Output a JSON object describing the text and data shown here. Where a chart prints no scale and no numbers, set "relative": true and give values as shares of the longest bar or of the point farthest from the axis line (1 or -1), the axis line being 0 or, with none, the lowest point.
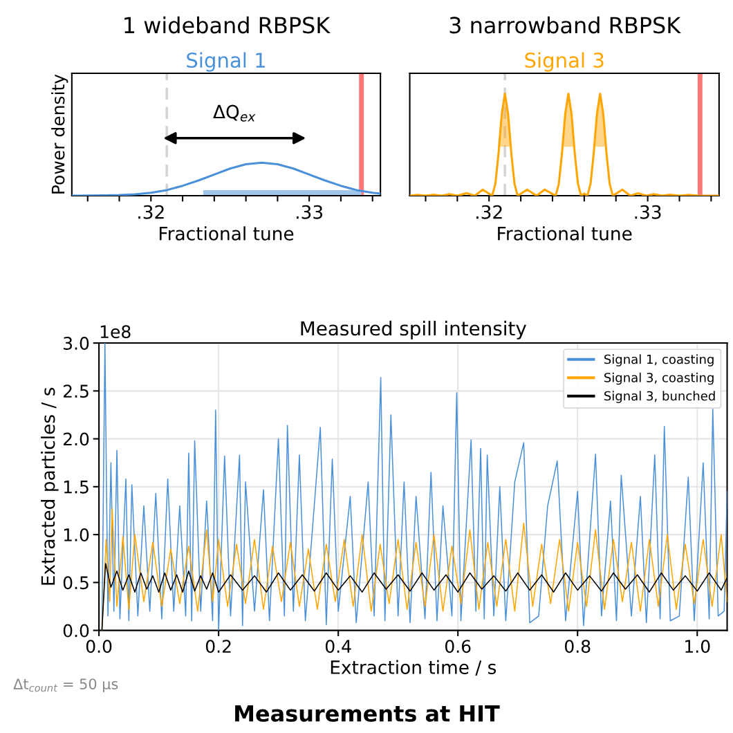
{
  "chart_data": [
    {
      "type": "line",
      "title": "1 wideband RBPSK",
      "subtitle": "Signal 1",
      "xlabel": "Fractional tune",
      "ylabel": "Power density",
      "relative": true,
      "tick_labels": "x",
      "xlim": [
        0.315,
        0.3345
      ],
      "xticks": [
        {
          "value": 0.316,
          "label": null
        },
        {
          "value": 0.318,
          "label": null
        },
        {
          "value": 0.32,
          "label": ".32"
        },
        {
          "value": 0.322,
          "label": null
        },
        {
          "value": 0.324,
          "label": null
        },
        {
          "value": 0.326,
          "label": null
        },
        {
          "value": 0.328,
          "label": null
        },
        {
          "value": 0.33,
          "label": ".33"
        },
        {
          "value": 0.332,
          "label": null
        },
        {
          "value": 0.334,
          "label": null
        }
      ],
      "series": [
        {
          "color": "#4a90d9",
          "x": [
            0.315,
            0.316,
            0.317,
            0.318,
            0.319,
            0.32,
            0.321,
            0.322,
            0.323,
            0.324,
            0.325,
            0.326,
            0.327,
            0.328,
            0.329,
            0.33,
            0.331,
            0.332,
            0.333,
            0.334,
            0.3345
          ],
          "values": [
            0.001,
            0.003,
            0.008,
            0.019,
            0.044,
            0.091,
            0.17,
            0.3,
            0.46,
            0.64,
            0.82,
            0.95,
            1,
            0.95,
            0.82,
            0.64,
            0.46,
            0.3,
            0.17,
            0.091,
            0.066
          ]
        }
      ],
      "ref_lines": [
        {
          "axis": "x",
          "value": 0.321,
          "color": "#d3d3d3",
          "line_style": "dashed"
        },
        {
          "axis": "x",
          "value": 0.3333,
          "color": "#ff7777",
          "line_style": "solid"
        }
      ],
      "annotations": [
        "ΔQ$_{ex}$"
      ],
      "bands": [
        {
          "axis": "x",
          "from": 0.3233,
          "to": 0.3333,
          "color": "#9fc5ea"
        }
      ]
    },
    {
      "type": "line",
      "title": "3 narrowband RBPSK",
      "subtitle": "Signal 3",
      "xlabel": "Fractional tune",
      "relative": true,
      "tick_labels": "x",
      "xlim": [
        0.315,
        0.3345
      ],
      "xticks": [
        {
          "value": 0.316,
          "label": null
        },
        {
          "value": 0.318,
          "label": null
        },
        {
          "value": 0.32,
          "label": ".32"
        },
        {
          "value": 0.322,
          "label": null
        },
        {
          "value": 0.324,
          "label": null
        },
        {
          "value": 0.326,
          "label": null
        },
        {
          "value": 0.328,
          "label": null
        },
        {
          "value": 0.33,
          "label": ".33"
        },
        {
          "value": 0.332,
          "label": null
        },
        {
          "value": 0.334,
          "label": null
        }
      ],
      "series": [
        {
          "color": "#ffa500",
          "x": [
            0.315,
            0.3155,
            0.316,
            0.3165,
            0.317,
            0.3175,
            0.318,
            0.3186,
            0.3191,
            0.3196,
            0.3202,
            0.3204,
            0.3206,
            0.32063,
            0.3208,
            0.321,
            0.3212,
            0.32137,
            0.3214,
            0.3216,
            0.3218,
            0.3224,
            0.323,
            0.3235,
            0.3242,
            0.3244,
            0.3246,
            0.32463,
            0.3248,
            0.325,
            0.3252,
            0.32537,
            0.3254,
            0.3256,
            0.3258,
            0.326,
            0.3262,
            0.3264,
            0.3266,
            0.32663,
            0.3268,
            0.327,
            0.3272,
            0.32737,
            0.3274,
            0.3276,
            0.3278,
            0.3284,
            0.3289,
            0.3294,
            0.3299,
            0.3304,
            0.3309,
            0.3314,
            0.332,
            0.3326,
            0.3332,
            0.3345
          ],
          "values": [
            0,
            0.008,
            0,
            0.01,
            0,
            0.015,
            0,
            0.025,
            0,
            0.06,
            0,
            0.12,
            0.42,
            0.48,
            0.8,
            1,
            0.8,
            0.48,
            0.42,
            0.12,
            0,
            0.06,
            0,
            0.06,
            0,
            0.12,
            0.42,
            0.48,
            0.8,
            1,
            0.8,
            0.48,
            0.42,
            0.12,
            0,
            0.02,
            0,
            0.12,
            0.42,
            0.48,
            0.8,
            1,
            0.8,
            0.48,
            0.42,
            0.12,
            0,
            0.06,
            0,
            0.025,
            0,
            0.015,
            0,
            0.01,
            0,
            0.008,
            0,
            0
          ],
          "lower": [
            null,
            null,
            null,
            null,
            null,
            null,
            null,
            null,
            null,
            null,
            null,
            null,
            null,
            0.48,
            0.48,
            0.48,
            0.48,
            0.48,
            null,
            null,
            null,
            null,
            null,
            null,
            null,
            null,
            null,
            0.48,
            0.48,
            0.48,
            0.48,
            0.48,
            null,
            null,
            null,
            null,
            null,
            null,
            null,
            0.48,
            0.48,
            0.48,
            0.48,
            0.48,
            null,
            null,
            null,
            null,
            null,
            null,
            null,
            null,
            null,
            null,
            null,
            null,
            null,
            null
          ],
          "upper": [
            null,
            null,
            null,
            null,
            null,
            null,
            null,
            null,
            null,
            null,
            null,
            null,
            null,
            0.48,
            0.8,
            1,
            0.8,
            0.48,
            null,
            null,
            null,
            null,
            null,
            null,
            null,
            null,
            null,
            0.48,
            0.8,
            1,
            0.8,
            0.48,
            null,
            null,
            null,
            null,
            null,
            null,
            null,
            0.48,
            0.8,
            1,
            0.8,
            0.48,
            null,
            null,
            null,
            null,
            null,
            null,
            null,
            null,
            null,
            null,
            null,
            null,
            null,
            null
          ]
        }
      ],
      "ref_lines": [
        {
          "axis": "x",
          "value": 0.321,
          "color": "#d3d3d3",
          "line_style": "dashed"
        },
        {
          "axis": "x",
          "value": 0.3333,
          "color": "#ff7777",
          "line_style": "solid"
        }
      ]
    },
    {
      "type": "line",
      "title": "Measured spill intensity",
      "xlabel": "Extraction time / s",
      "ylabel": "Extracted particles / s",
      "grid": true,
      "legend": "top right",
      "xlim": [
        0,
        1.05
      ],
      "ylim": [
        0,
        3.0
      ],
      "xticks": [
        {
          "value": 0,
          "label": "0.0"
        },
        0.2,
        0.4,
        0.6,
        0.8,
        {
          "value": 1,
          "label": "1.0"
        }
      ],
      "yticks": [
        {
          "value": 0,
          "label": "0.0"
        },
        0.5,
        {
          "value": 1,
          "label": "1.0"
        },
        1.5,
        {
          "value": 2,
          "label": "2.0"
        },
        2.5,
        {
          "value": 3,
          "label": "3.0"
        }
      ],
      "annotations": [
        "1e8",
        "Δt$_{count}$ = 50 µs",
        "Measurements at HIT"
      ],
      "series": [
        {
          "name": "Signal 1, coasting",
          "color": "#4a90d9",
          "x": [
            0.005,
            0.01,
            0.015,
            0.02,
            0.025,
            0.03,
            0.035,
            0.045,
            0.05,
            0.055,
            0.065,
            0.075,
            0.085,
            0.095,
            0.105,
            0.115,
            0.125,
            0.135,
            0.145,
            0.15,
            0.155,
            0.16,
            0.17,
            0.18,
            0.19,
            0.195,
            0.2,
            0.21,
            0.22,
            0.235,
            0.24,
            0.245,
            0.26,
            0.275,
            0.285,
            0.3,
            0.31,
            0.315,
            0.325,
            0.335,
            0.345,
            0.37,
            0.38,
            0.39,
            0.4,
            0.42,
            0.43,
            0.45,
            0.46,
            0.471,
            0.478,
            0.488,
            0.5,
            0.51,
            0.52,
            0.53,
            0.545,
            0.555,
            0.565,
            0.575,
            0.59,
            0.598,
            0.605,
            0.622,
            0.63,
            0.638,
            0.644,
            0.649,
            0.66,
            0.67,
            0.68,
            0.695,
            0.71,
            0.72,
            0.735,
            0.75,
            0.766,
            0.78,
            0.8,
            0.81,
            0.83,
            0.84,
            0.855,
            0.865,
            0.873,
            0.89,
            0.905,
            0.915,
            0.929,
            0.938,
            0.945,
            0.955,
            0.97,
            0.985,
            0.995,
            1.01,
            1.02,
            1.026,
            1.035,
            1.045,
            1.05
          ],
          "values": [
            0.0,
            3.0,
            0.15,
            1.75,
            0.2,
            1.88,
            0.12,
            1.58,
            0.1,
            1.52,
            0.15,
            1.3,
            0.2,
            1.43,
            0.12,
            1.58,
            0.2,
            1.3,
            0.15,
            1.85,
            0.1,
            1.98,
            0.2,
            1.35,
            0.1,
            2.3,
            0.0,
            1.82,
            0.15,
            1.83,
            0.05,
            1.55,
            0.2,
            1.47,
            0.1,
            2.0,
            0.15,
            2.14,
            0.2,
            1.83,
            0.1,
            2.12,
            0.06,
            1.79,
            0.2,
            1.4,
            0.08,
            1.55,
            0.15,
            2.64,
            0.1,
            2.25,
            0.15,
            1.55,
            0.08,
            1.4,
            0.12,
            1.65,
            0.1,
            1.3,
            0.15,
            2.48,
            0.1,
            1.99,
            0.2,
            1.9,
            0.12,
            1.83,
            0.15,
            1.5,
            0.1,
            1.55,
            1.96,
            0.08,
            0.15,
            1.3,
            1.77,
            0.1,
            1.45,
            0.05,
            1.84,
            0.15,
            1.35,
            0.1,
            1.62,
            0.15,
            1.4,
            0.08,
            1.83,
            0.12,
            2.13,
            0.1,
            0.15,
            1.6,
            0.1,
            1.75,
            0.12,
            2.31,
            0.15,
            0.2,
            1.45
          ]
        },
        {
          "name": "Signal 3, coasting",
          "color": "#ffa500",
          "x": [
            0.005,
            0.012,
            0.018,
            0.022,
            0.03,
            0.04,
            0.05,
            0.06,
            0.075,
            0.09,
            0.105,
            0.12,
            0.135,
            0.15,
            0.165,
            0.18,
            0.19,
            0.2,
            0.215,
            0.23,
            0.245,
            0.26,
            0.275,
            0.29,
            0.305,
            0.32,
            0.335,
            0.35,
            0.365,
            0.38,
            0.395,
            0.41,
            0.425,
            0.44,
            0.455,
            0.47,
            0.485,
            0.5,
            0.515,
            0.53,
            0.545,
            0.56,
            0.575,
            0.59,
            0.605,
            0.62,
            0.635,
            0.65,
            0.665,
            0.68,
            0.695,
            0.71,
            0.725,
            0.74,
            0.755,
            0.77,
            0.785,
            0.8,
            0.815,
            0.83,
            0.845,
            0.86,
            0.875,
            0.89,
            0.905,
            0.92,
            0.935,
            0.95,
            0.965,
            0.98,
            0.995,
            1.01,
            1.025,
            1.04,
            1.05
          ],
          "values": [
            0,
            0.95,
            0.3,
            1.27,
            0.25,
            0.98,
            0.22,
            1.0,
            0.3,
            0.92,
            0.25,
            0.85,
            0.28,
            0.88,
            0.2,
            1.05,
            0.3,
            0.95,
            0.25,
            0.9,
            0.28,
            0.95,
            0.22,
            0.88,
            0.3,
            0.92,
            0.25,
            0.85,
            0.22,
            0.9,
            0.3,
            0.95,
            0.25,
            1.0,
            0.2,
            0.9,
            0.28,
            0.95,
            0.22,
            0.92,
            0.25,
            1.0,
            0.2,
            0.88,
            0.28,
            1.05,
            0.22,
            0.92,
            0.25,
            0.95,
            0.2,
            1.12,
            0.25,
            0.9,
            0.28,
            0.95,
            0.2,
            0.92,
            0.25,
            1.05,
            0.22,
            0.95,
            0.3,
            0.92,
            0.2,
            0.95,
            0.25,
            1.0,
            0.22,
            0.9,
            0.28,
            0.95,
            0.25,
            1.0,
            0.3
          ]
        },
        {
          "name": "Signal 3, bunched",
          "color": "#000000",
          "x": [
            0.005,
            0.011,
            0.02,
            0.03,
            0.04,
            0.05,
            0.06,
            0.07,
            0.08,
            0.09,
            0.1,
            0.11,
            0.12,
            0.13,
            0.14,
            0.15,
            0.16,
            0.17,
            0.18,
            0.19,
            0.2,
            0.22,
            0.24,
            0.26,
            0.28,
            0.3,
            0.32,
            0.34,
            0.36,
            0.38,
            0.4,
            0.42,
            0.44,
            0.46,
            0.48,
            0.5,
            0.52,
            0.54,
            0.56,
            0.58,
            0.6,
            0.62,
            0.64,
            0.66,
            0.68,
            0.7,
            0.72,
            0.74,
            0.76,
            0.78,
            0.8,
            0.82,
            0.84,
            0.86,
            0.88,
            0.9,
            0.92,
            0.94,
            0.96,
            0.98,
            1.0,
            1.02,
            1.04,
            1.05
          ],
          "values": [
            0,
            0.7,
            0.45,
            0.62,
            0.42,
            0.58,
            0.4,
            0.6,
            0.43,
            0.57,
            0.4,
            0.6,
            0.42,
            0.58,
            0.4,
            0.62,
            0.41,
            0.57,
            0.43,
            0.6,
            0.4,
            0.58,
            0.42,
            0.57,
            0.4,
            0.6,
            0.42,
            0.58,
            0.41,
            0.6,
            0.42,
            0.57,
            0.4,
            0.6,
            0.43,
            0.58,
            0.41,
            0.6,
            0.42,
            0.58,
            0.4,
            0.6,
            0.43,
            0.57,
            0.41,
            0.6,
            0.42,
            0.58,
            0.4,
            0.6,
            0.42,
            0.57,
            0.41,
            0.6,
            0.43,
            0.58,
            0.4,
            0.6,
            0.42,
            0.57,
            0.41,
            0.6,
            0.42,
            0.55
          ]
        }
      ]
    }
  ]
}
